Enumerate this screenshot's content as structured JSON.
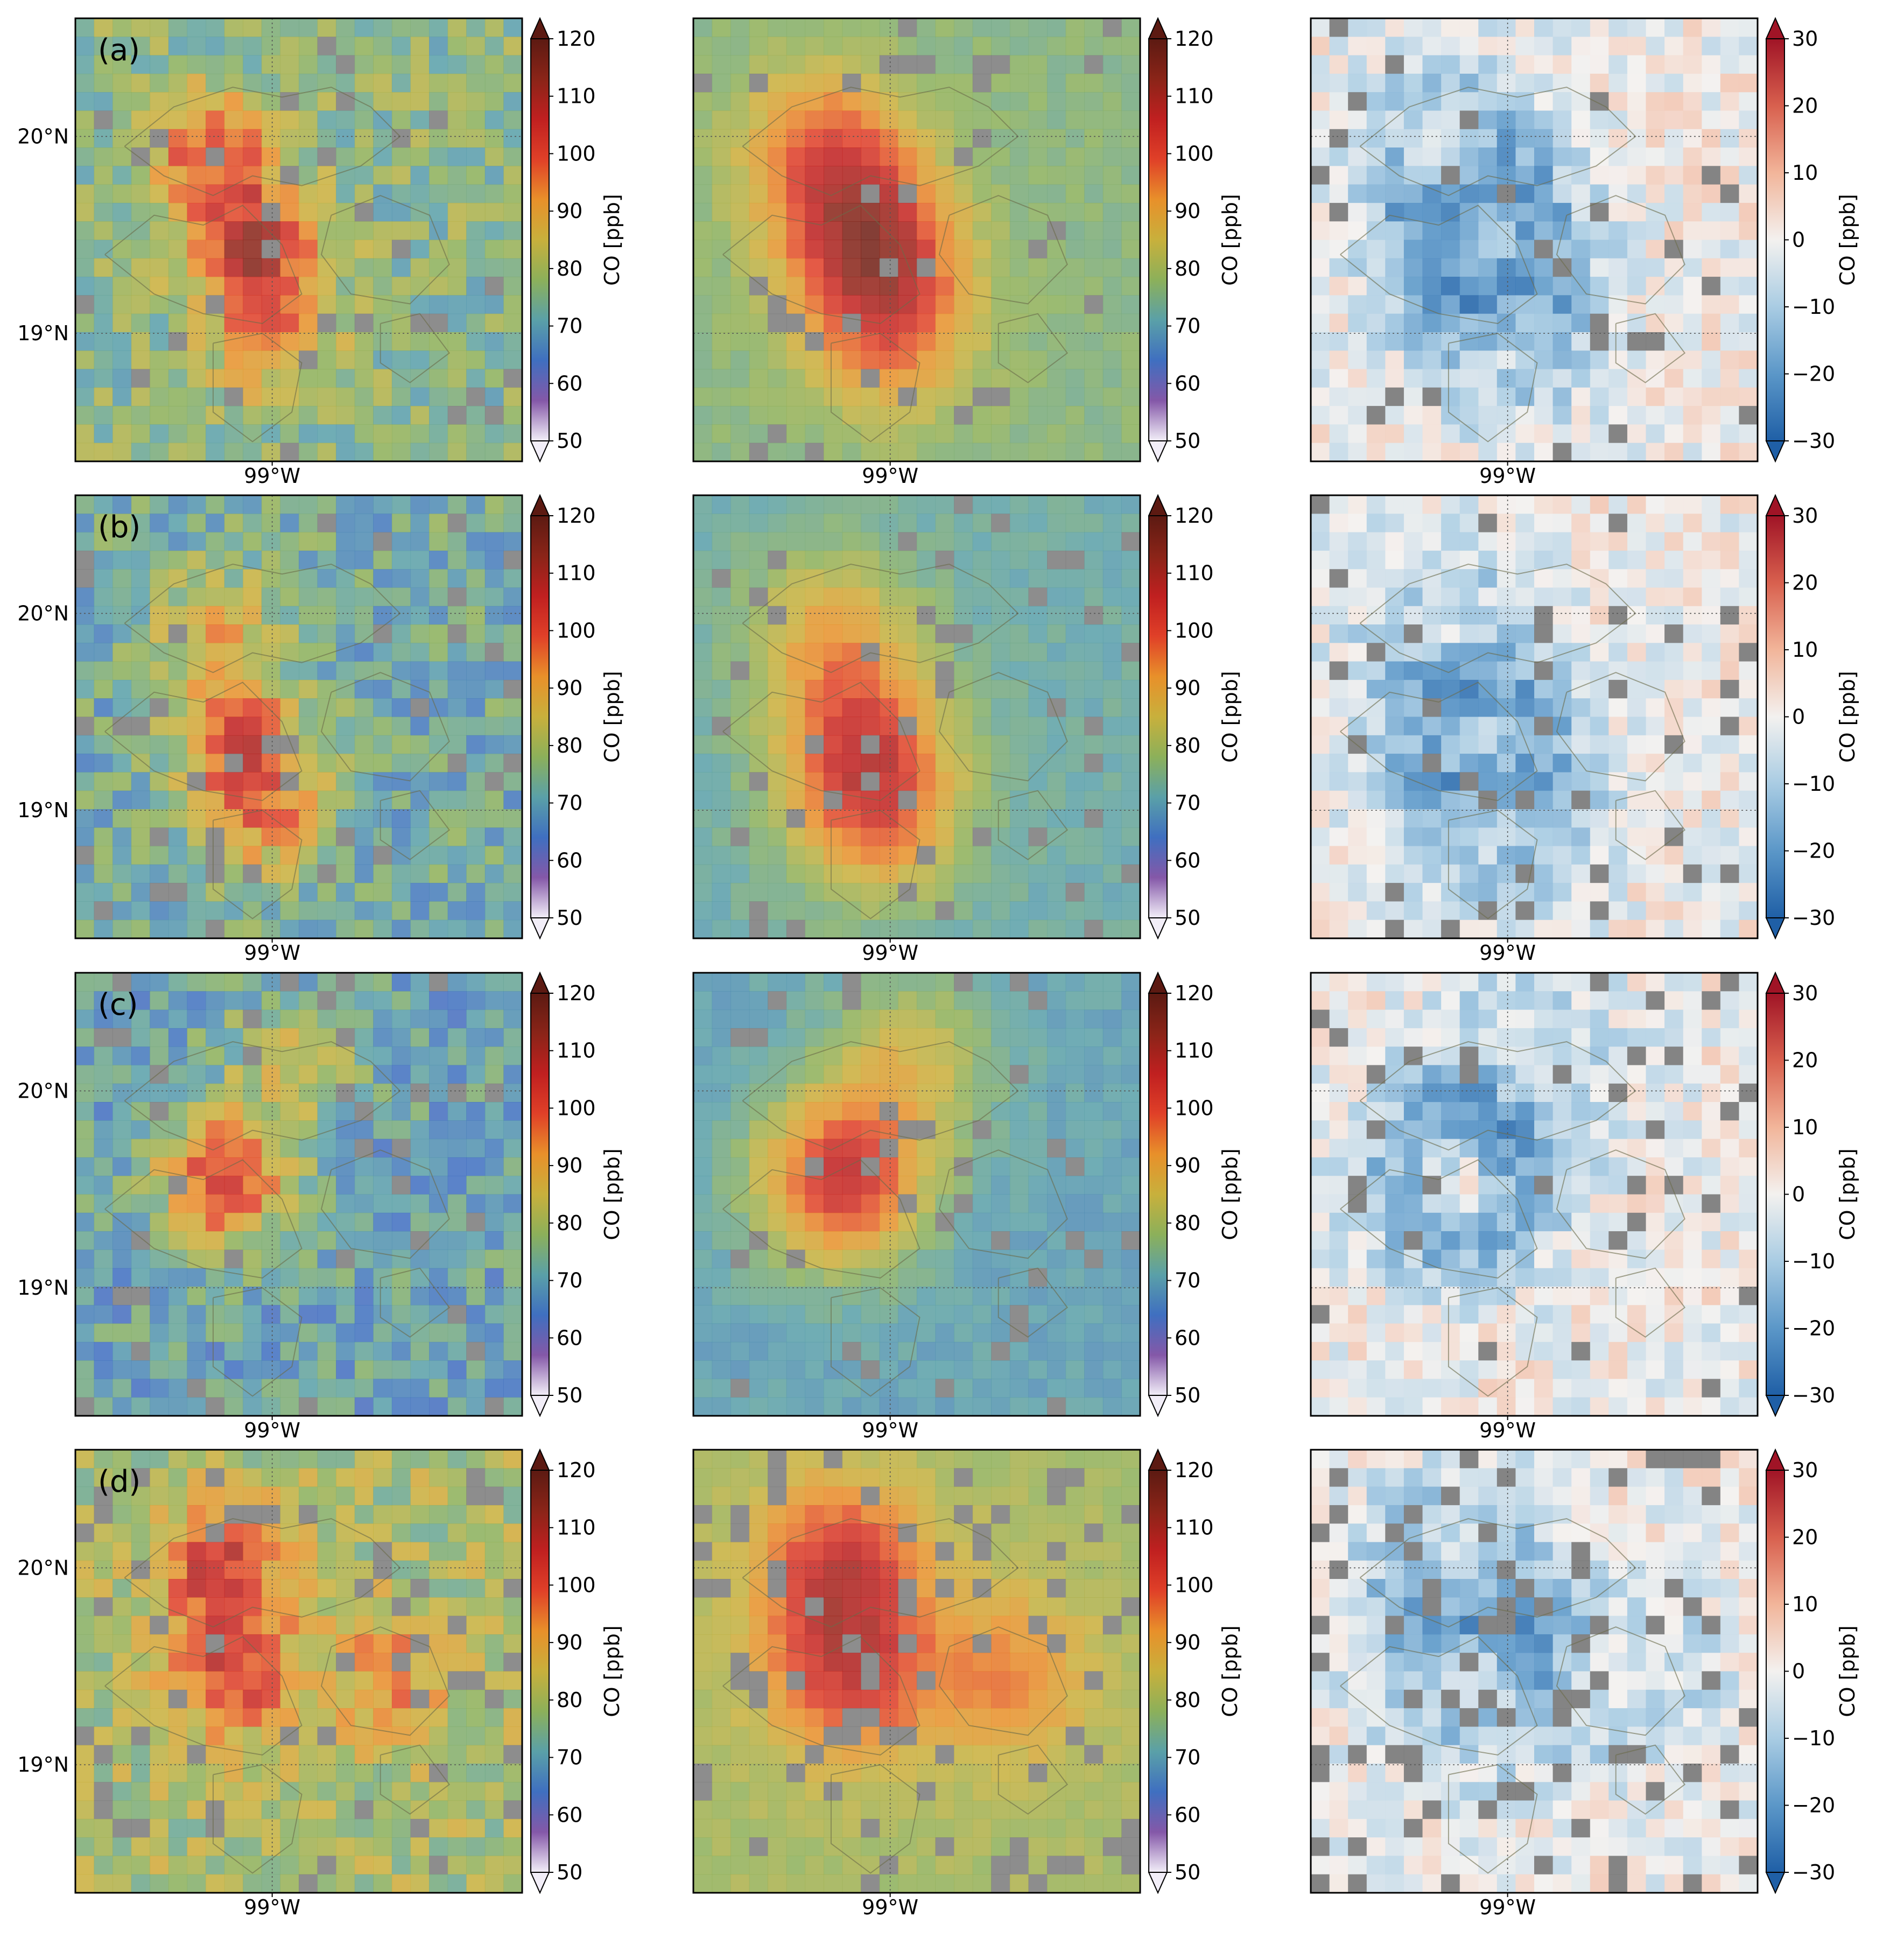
{
  "chart_data": {
    "type": "heatmap",
    "layout": {
      "rows": 4,
      "cols": 3
    },
    "panel_labels": [
      "(a)",
      "(b)",
      "(c)",
      "(d)"
    ],
    "colorbar_label": "CO [ppb]",
    "abs_scale": {
      "min": 50,
      "max": 120,
      "ticks": [
        50,
        60,
        70,
        80,
        90,
        100,
        110,
        120
      ],
      "extend": "both"
    },
    "diff_scale": {
      "min": -30,
      "max": 30,
      "ticks": [
        -30,
        -20,
        -10,
        0,
        10,
        20,
        30
      ],
      "extend": "both"
    },
    "x_tick_label": "99°W",
    "y_tick_labels": {
      "top": "20°N",
      "bottom": "19°N"
    },
    "missing_color": "#7a7a7a",
    "cmap_abs": [
      "#f2eef8",
      "#8458a8",
      "#3f6fc0",
      "#5aa0a8",
      "#8cb05a",
      "#c8b03c",
      "#e8902a",
      "#e04028",
      "#c02020",
      "#8a2418",
      "#5c1a12"
    ],
    "cmap_diff": [
      "#1f5fa6",
      "#5b97c8",
      "#a9cce3",
      "#f3f1ef",
      "#f2b59a",
      "#d8604e",
      "#a01426"
    ],
    "rows": [
      {
        "label": "(a)",
        "bg": 76,
        "hotspots": [
          {
            "lat": 19.45,
            "lon": -99.1,
            "amp": 30
          },
          {
            "lat": 19.92,
            "lon": -99.32,
            "amp": 22
          },
          {
            "lat": 19.0,
            "lon": -99.0,
            "amp": 18
          }
        ]
      },
      {
        "label": "(b)",
        "bg": 72,
        "hotspots": [
          {
            "lat": 19.35,
            "lon": -99.15,
            "amp": 26
          },
          {
            "lat": 19.92,
            "lon": -99.3,
            "amp": 16
          },
          {
            "lat": 18.95,
            "lon": -99.05,
            "amp": 20
          }
        ]
      },
      {
        "label": "(c)",
        "bg": 70,
        "hotspots": [
          {
            "lat": 19.55,
            "lon": -99.25,
            "amp": 35
          },
          {
            "lat": 20.15,
            "lon": -98.9,
            "amp": 15
          }
        ]
      },
      {
        "label": "(d)",
        "bg": 80,
        "hotspots": [
          {
            "lat": 19.45,
            "lon": -99.2,
            "amp": 22
          },
          {
            "lat": 20.0,
            "lon": -99.25,
            "amp": 24
          },
          {
            "lat": 19.45,
            "lon": -98.4,
            "amp": 14
          }
        ]
      }
    ]
  }
}
